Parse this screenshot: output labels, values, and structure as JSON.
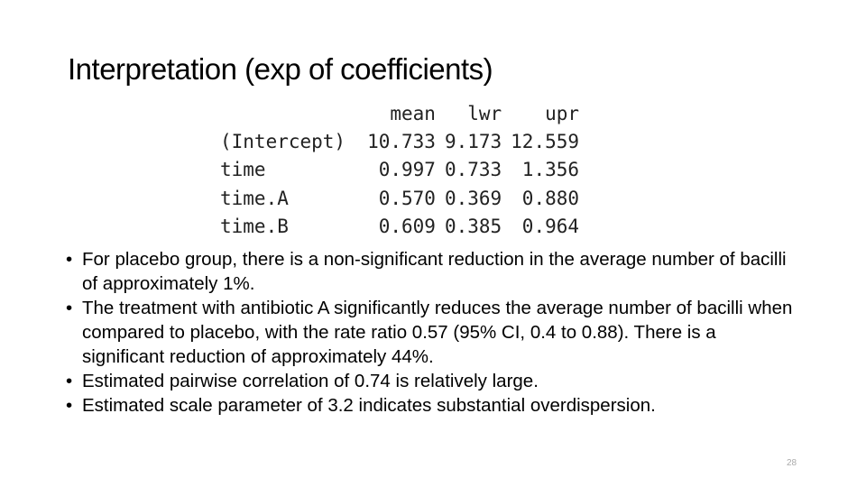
{
  "slide": {
    "title": "Interpretation (exp of coefficients)",
    "table": {
      "header": [
        "mean",
        "lwr",
        "upr"
      ],
      "rows": [
        [
          "(Intercept)",
          "10.733",
          "9.173",
          "12.559"
        ],
        [
          "time",
          "0.997",
          "0.733",
          "1.356"
        ],
        [
          "time.A",
          "0.570",
          "0.369",
          "0.880"
        ],
        [
          "time.B",
          "0.609",
          "0.385",
          "0.964"
        ]
      ]
    },
    "bullets": [
      "For placebo group, there is a non-significant reduction in the average number of bacilli of approximately 1%.",
      "The treatment with antibiotic A significantly reduces the average number of bacilli when compared to placebo, with the rate ratio 0.57 (95% CI, 0.4 to 0.88). There is a significant reduction of approximately 44%.",
      "Estimated pairwise correlation of 0.74 is relatively large.",
      "Estimated scale parameter of 3.2 indicates substantial overdispersion."
    ],
    "page_number": "28"
  }
}
